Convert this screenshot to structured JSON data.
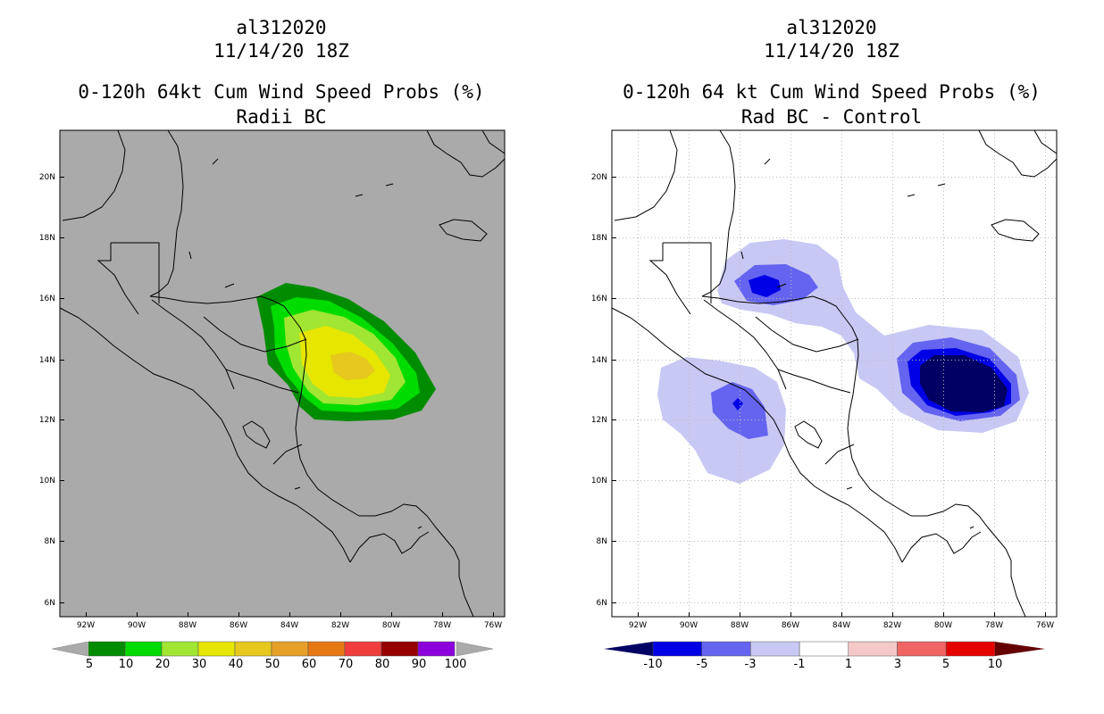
{
  "left_panel": {
    "storm_id": "al312020",
    "datetime": "11/14/20 18Z",
    "title": "0-120h 64kt Cum Wind Speed Probs (%)",
    "subtitle": "Radii BC",
    "background_color": "#aaaaaa",
    "colorbar": {
      "labels": [
        "5",
        "10",
        "20",
        "30",
        "40",
        "50",
        "60",
        "70",
        "80",
        "90",
        "100"
      ],
      "colors": [
        "#008c00",
        "#00dc00",
        "#a0e632",
        "#e6e600",
        "#e6c81e",
        "#e6a028",
        "#e67814",
        "#f03c3c",
        "#960000",
        "#8c00dc"
      ]
    }
  },
  "right_panel": {
    "storm_id": "al312020",
    "datetime": "11/14/20 18Z",
    "title": "0-120h 64 kt Cum Wind Speed Probs (%)",
    "subtitle": "Rad BC - Control",
    "background_color": "#ffffff",
    "colorbar": {
      "labels": [
        "-10",
        "-5",
        "-3",
        "-1",
        "1",
        "3",
        "5",
        "10"
      ],
      "colors": [
        "#000064",
        "#0000e6",
        "#6464f0",
        "#c8c8f5",
        "#ffffff",
        "#f5c8c8",
        "#f06464",
        "#e60000",
        "#640000"
      ]
    }
  },
  "axes": {
    "lat_labels": [
      "20N",
      "18N",
      "16N",
      "14N",
      "12N",
      "10N",
      "8N",
      "6N"
    ],
    "lon_labels": [
      "92W",
      "90W",
      "88W",
      "86W",
      "84W",
      "82W",
      "80W",
      "78W",
      "76W"
    ]
  },
  "colors": {
    "coast": "#000000",
    "grid": "#999999"
  }
}
